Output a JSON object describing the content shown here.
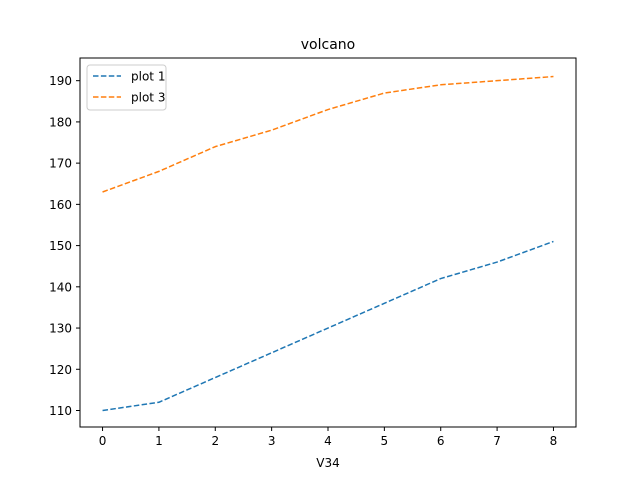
{
  "chart_data": {
    "type": "line",
    "title": "volcano",
    "xlabel": "V34",
    "ylabel": "",
    "x": [
      0,
      1,
      2,
      3,
      4,
      5,
      6,
      7,
      8
    ],
    "xlim": [
      -0.4,
      8.4
    ],
    "ylim": [
      106,
      195.5
    ],
    "x_ticks": [
      0,
      1,
      2,
      3,
      4,
      5,
      6,
      7,
      8
    ],
    "y_ticks": [
      110,
      120,
      130,
      140,
      150,
      160,
      170,
      180,
      190
    ],
    "grid": false,
    "legend_position": "top-left",
    "series": [
      {
        "name": "plot 1",
        "color": "#1f77b4",
        "line_style": "dashed",
        "values": [
          110,
          112,
          118,
          124,
          130,
          136,
          142,
          146,
          151
        ]
      },
      {
        "name": "plot 3",
        "color": "#ff7f0e",
        "line_style": "dashed",
        "values": [
          163,
          168,
          174,
          178,
          183,
          187,
          189,
          190,
          191
        ]
      }
    ]
  }
}
